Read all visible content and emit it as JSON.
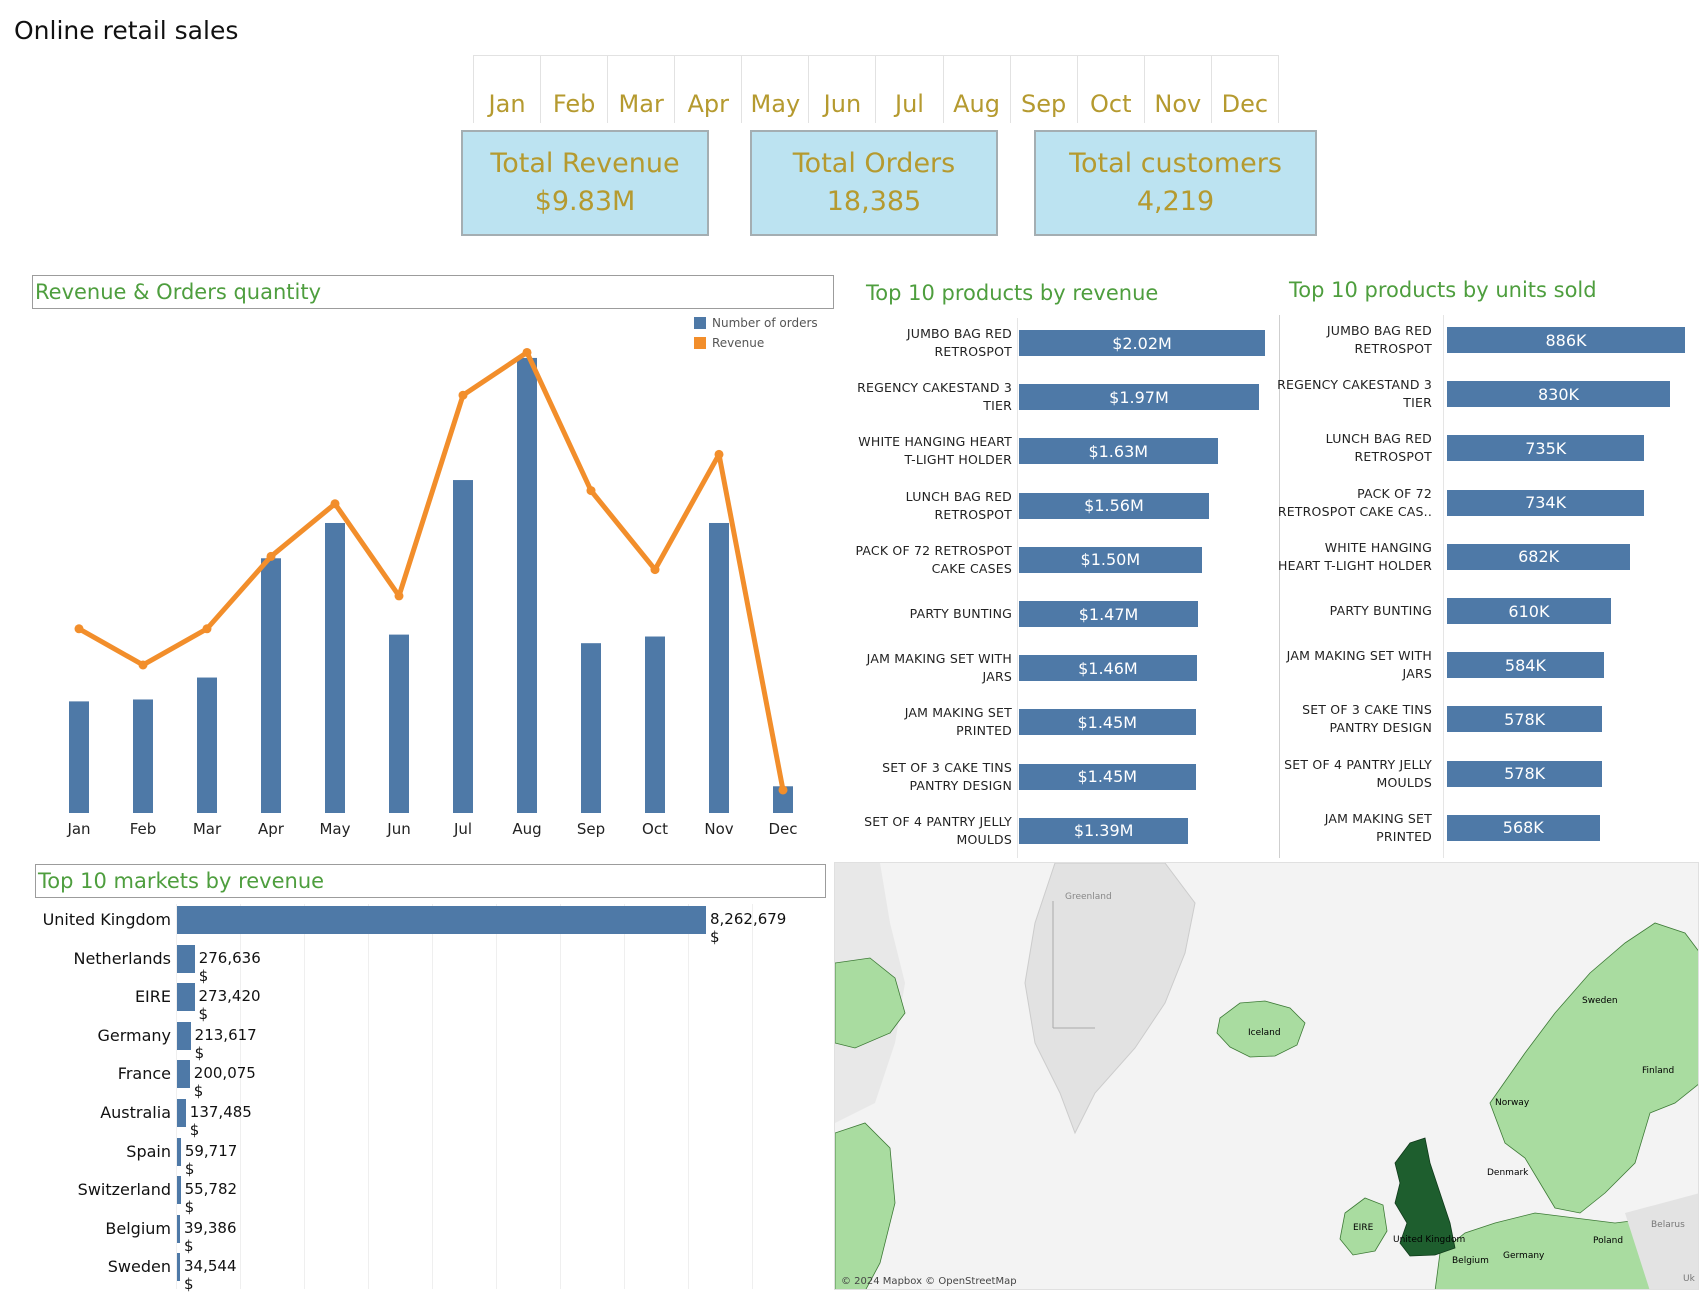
{
  "title": "Online retail sales",
  "months": [
    "Jan",
    "Feb",
    "Mar",
    "Apr",
    "May",
    "Jun",
    "Jul",
    "Aug",
    "Sep",
    "Oct",
    "Nov",
    "Dec"
  ],
  "kpis": [
    {
      "label": "Total Revenue",
      "value": "$9.83M"
    },
    {
      "label": "Total Orders",
      "value": "18,385"
    },
    {
      "label": "Total customers",
      "value": "4,219"
    }
  ],
  "colors": {
    "bar": "#4e79a7",
    "line": "#f28e2b",
    "title_green": "#4e9e3e",
    "kpi_bg": "#bce3f1",
    "kpi_text": "#b59a2f",
    "map_land": "#a9dca0",
    "map_uk": "#1e5e2e"
  },
  "combo_title": "Revenue & Orders quantity",
  "products_revenue_title": "Top 10 products by revenue",
  "products_units_title": "Top 10 products by units sold",
  "markets_title": "Top 10 markets by revenue",
  "chart_data": [
    {
      "type": "bar",
      "title": "Revenue & Orders quantity",
      "categories": [
        "Jan",
        "Feb",
        "Mar",
        "Apr",
        "May",
        "Jun",
        "Jul",
        "Aug",
        "Sep",
        "Oct",
        "Nov",
        "Dec"
      ],
      "series": [
        {
          "name": "Number of orders",
          "type": "bar",
          "values": [
            1170,
            1190,
            1420,
            2670,
            3040,
            1870,
            3490,
            4770,
            1780,
            1850,
            3040,
            280
          ]
        },
        {
          "name": "Revenue",
          "type": "line",
          "values": [
            0.56,
            0.45,
            0.56,
            0.78,
            0.94,
            0.66,
            1.27,
            1.4,
            0.98,
            0.74,
            1.09,
            0.07
          ]
        }
      ],
      "legend": "top-right",
      "grid": false
    },
    {
      "type": "bar",
      "title": "Top 10 products by revenue",
      "orientation": "horizontal",
      "categories": [
        [
          "JUMBO BAG RED",
          "RETROSPOT"
        ],
        [
          "REGENCY CAKESTAND 3",
          "TIER"
        ],
        [
          "WHITE HANGING HEART",
          "T-LIGHT HOLDER"
        ],
        [
          "LUNCH BAG RED",
          "RETROSPOT"
        ],
        [
          "PACK OF 72 RETROSPOT",
          "CAKE CASES"
        ],
        [
          "PARTY BUNTING"
        ],
        [
          "JAM MAKING SET WITH",
          "JARS"
        ],
        [
          "JAM MAKING SET",
          "PRINTED"
        ],
        [
          "SET OF 3 CAKE TINS",
          "PANTRY DESIGN"
        ],
        [
          "SET OF 4 PANTRY JELLY",
          "MOULDS"
        ]
      ],
      "values": [
        2.02,
        1.97,
        1.63,
        1.56,
        1.5,
        1.47,
        1.46,
        1.45,
        1.45,
        1.39
      ],
      "labels": [
        "$2.02M",
        "$1.97M",
        "$1.63M",
        "$1.56M",
        "$1.50M",
        "$1.47M",
        "$1.46M",
        "$1.45M",
        "$1.45M",
        "$1.39M"
      ]
    },
    {
      "type": "bar",
      "title": "Top 10 products by units sold",
      "orientation": "horizontal",
      "categories": [
        [
          "JUMBO BAG RED",
          "RETROSPOT"
        ],
        [
          "REGENCY CAKESTAND 3",
          "TIER"
        ],
        [
          "LUNCH BAG RED",
          "RETROSPOT"
        ],
        [
          "PACK OF 72",
          "RETROSPOT CAKE CAS.."
        ],
        [
          "WHITE HANGING",
          "HEART T-LIGHT HOLDER"
        ],
        [
          "PARTY BUNTING"
        ],
        [
          "JAM MAKING SET WITH",
          "JARS"
        ],
        [
          "SET OF 3 CAKE TINS",
          "PANTRY DESIGN"
        ],
        [
          "SET OF 4 PANTRY JELLY",
          "MOULDS"
        ],
        [
          "JAM MAKING SET",
          "PRINTED"
        ]
      ],
      "values": [
        886,
        830,
        735,
        734,
        682,
        610,
        584,
        578,
        578,
        568
      ],
      "labels": [
        "886K",
        "830K",
        "735K",
        "734K",
        "682K",
        "610K",
        "584K",
        "578K",
        "578K",
        "568K"
      ]
    },
    {
      "type": "bar",
      "title": "Top 10 markets by revenue",
      "orientation": "horizontal",
      "categories": [
        "United Kingdom",
        "Netherlands",
        "EIRE",
        "Germany",
        "France",
        "Australia",
        "Spain",
        "Switzerland",
        "Belgium",
        "Sweden"
      ],
      "values": [
        8262679,
        276636,
        273420,
        213617,
        200075,
        137485,
        59717,
        55782,
        39386,
        34544
      ],
      "labels": [
        "8,262,679 $",
        "276,636 $",
        "273,420 $",
        "213,617 $",
        "200,075 $",
        "137,485 $",
        "59,717 $",
        "55,782 $",
        "39,386 $",
        "34,544 $"
      ]
    }
  ],
  "map": {
    "labels": [
      "Greenland",
      "Iceland",
      "Sweden",
      "Finland",
      "Norway",
      "Denmark",
      "EIRE",
      "United Kingdom",
      "Belgium",
      "Germany",
      "Poland",
      "Belarus",
      "Uk"
    ],
    "attribution": "© 2024 Mapbox © OpenStreetMap"
  }
}
